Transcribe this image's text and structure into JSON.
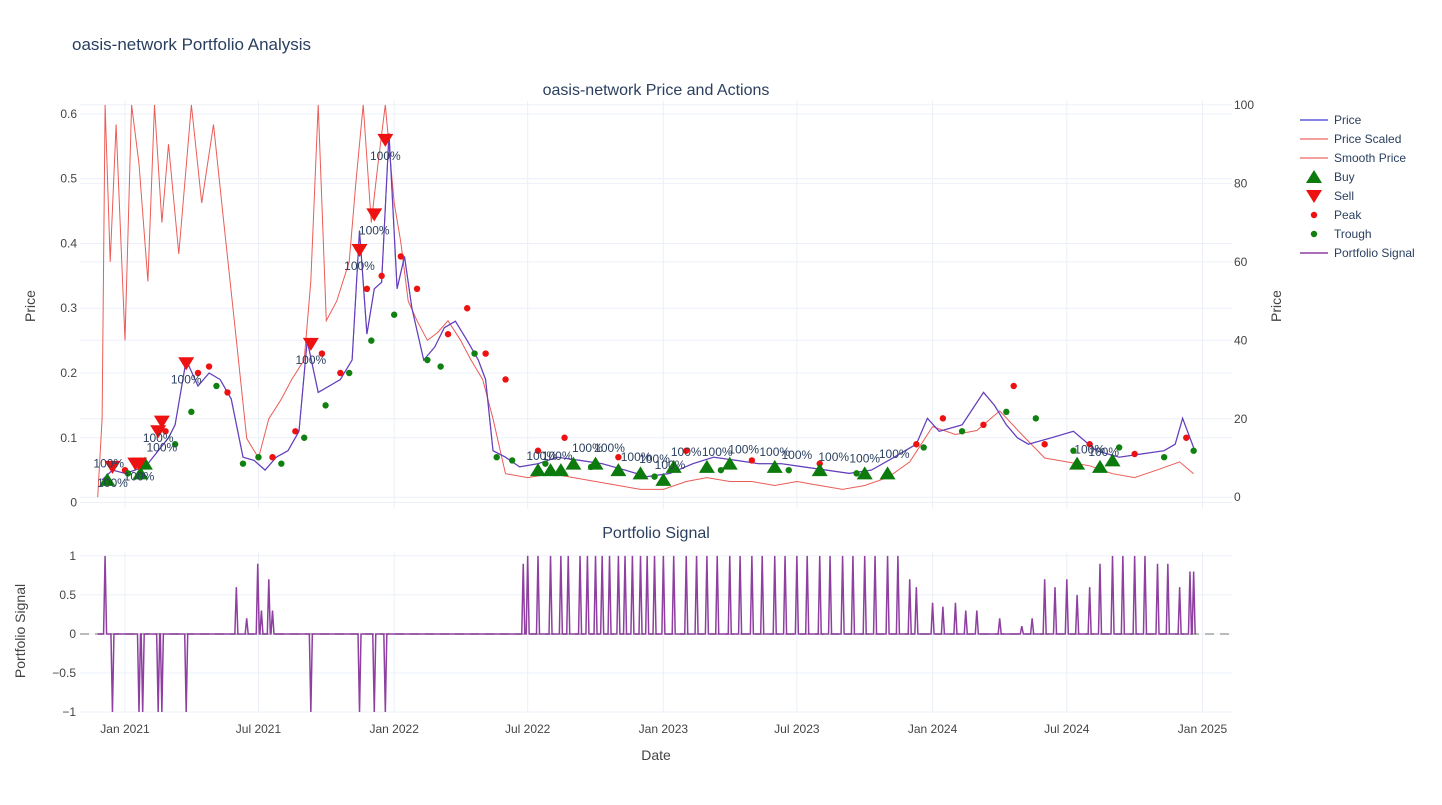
{
  "chart_data": [
    {
      "type": "line",
      "title": "oasis-network Portfolio Analysis",
      "subtitle": "oasis-network Price and Actions",
      "xlabel": "",
      "ylabel": "Price",
      "y2label": "Price",
      "xlim": [
        "2020-11-01",
        "2025-02-10"
      ],
      "ylim": [
        -0.01,
        0.62
      ],
      "y2lim": [
        -3,
        101
      ],
      "yticks": [
        0,
        0.1,
        0.2,
        0.3,
        0.4,
        0.5,
        0.6
      ],
      "ytick_labels": [
        "0",
        "0.1",
        "0.2",
        "0.3",
        "0.4",
        "0.5",
        "0.6"
      ],
      "y2ticks": [
        0,
        20,
        40,
        60,
        80,
        100
      ],
      "y2tick_labels": [
        "0",
        "20",
        "40",
        "60",
        "80",
        "100"
      ],
      "grid": true,
      "legend_position": "top-right",
      "legend": [
        "Price",
        "Price Scaled",
        "Smooth Price",
        "Buy",
        "Sell",
        "Peak",
        "Trough",
        "Portfolio Signal"
      ],
      "colors": {
        "price": "#3b3bd6",
        "price_scaled": "#e8403a",
        "smooth_price": "#e8403a",
        "buy": "#0d7a0d",
        "sell": "#ee1111",
        "peak": "#ee1111",
        "trough": "#108010",
        "signal": "#8e3fa0"
      },
      "series": [
        {
          "name": "Price",
          "x": [
            "2020-12-01",
            "2020-12-15",
            "2021-01-01",
            "2021-01-15",
            "2021-02-01",
            "2021-02-15",
            "2021-03-01",
            "2021-03-10",
            "2021-03-25",
            "2021-04-10",
            "2021-04-25",
            "2021-05-10",
            "2021-05-25",
            "2021-06-10",
            "2021-06-25",
            "2021-07-10",
            "2021-07-25",
            "2021-08-10",
            "2021-08-25",
            "2021-09-05",
            "2021-09-20",
            "2021-10-05",
            "2021-10-20",
            "2021-11-05",
            "2021-11-15",
            "2021-11-25",
            "2021-12-05",
            "2021-12-15",
            "2021-12-25",
            "2022-01-05",
            "2022-01-15",
            "2022-01-25",
            "2022-02-10",
            "2022-02-25",
            "2022-03-10",
            "2022-03-25",
            "2022-04-10",
            "2022-04-25",
            "2022-05-05",
            "2022-05-15",
            "2022-06-01",
            "2022-06-20",
            "2022-07-15",
            "2022-08-10",
            "2022-09-10",
            "2022-10-10",
            "2022-11-10",
            "2022-12-10",
            "2023-01-10",
            "2023-02-10",
            "2023-03-10",
            "2023-04-10",
            "2023-05-10",
            "2023-06-10",
            "2023-07-10",
            "2023-08-10",
            "2023-09-10",
            "2023-10-10",
            "2023-11-10",
            "2023-12-10",
            "2023-12-25",
            "2024-01-10",
            "2024-02-10",
            "2024-03-10",
            "2024-03-25",
            "2024-04-10",
            "2024-04-25",
            "2024-05-10",
            "2024-06-10",
            "2024-07-10",
            "2024-08-10",
            "2024-09-10",
            "2024-10-10",
            "2024-11-10",
            "2024-11-25",
            "2024-12-05",
            "2024-12-20"
          ],
          "values": [
            0.035,
            0.05,
            0.045,
            0.05,
            0.06,
            0.08,
            0.1,
            0.12,
            0.22,
            0.18,
            0.2,
            0.19,
            0.16,
            0.07,
            0.065,
            0.05,
            0.07,
            0.08,
            0.11,
            0.25,
            0.17,
            0.18,
            0.19,
            0.22,
            0.42,
            0.26,
            0.33,
            0.34,
            0.57,
            0.33,
            0.38,
            0.3,
            0.22,
            0.24,
            0.27,
            0.28,
            0.25,
            0.22,
            0.19,
            0.08,
            0.07,
            0.055,
            0.06,
            0.07,
            0.065,
            0.06,
            0.05,
            0.04,
            0.045,
            0.06,
            0.07,
            0.065,
            0.06,
            0.06,
            0.055,
            0.05,
            0.045,
            0.05,
            0.07,
            0.09,
            0.13,
            0.11,
            0.12,
            0.17,
            0.15,
            0.12,
            0.1,
            0.09,
            0.1,
            0.11,
            0.08,
            0.07,
            0.075,
            0.08,
            0.09,
            0.13,
            0.085
          ]
        },
        {
          "name": "Price Scaled",
          "x": [
            "2020-11-25",
            "2020-12-01",
            "2020-12-05",
            "2020-12-12",
            "2020-12-20",
            "2021-01-01",
            "2021-01-10",
            "2021-01-20",
            "2021-02-01",
            "2021-02-10",
            "2021-02-20",
            "2021-03-01",
            "2021-03-15",
            "2021-04-01",
            "2021-04-15",
            "2021-05-01",
            "2021-05-15",
            "2021-06-01",
            "2021-06-15",
            "2021-07-01",
            "2021-07-15",
            "2021-08-01",
            "2021-08-15",
            "2021-09-01",
            "2021-09-10",
            "2021-09-20",
            "2021-10-01",
            "2021-10-15",
            "2021-11-01",
            "2021-11-10",
            "2021-11-20",
            "2021-12-01",
            "2021-12-10",
            "2021-12-20",
            "2022-01-01",
            "2022-01-10",
            "2022-01-20",
            "2022-02-01",
            "2022-02-15",
            "2022-03-01",
            "2022-03-15",
            "2022-04-01",
            "2022-04-15",
            "2022-05-01",
            "2022-05-15",
            "2022-06-01",
            "2022-07-01",
            "2022-08-01",
            "2022-09-01",
            "2022-10-01",
            "2022-11-01",
            "2022-12-01",
            "2023-01-01",
            "2023-02-01",
            "2023-03-01",
            "2023-04-01",
            "2023-05-01",
            "2023-06-01",
            "2023-07-01",
            "2023-08-01",
            "2023-09-01",
            "2023-10-01",
            "2023-11-01",
            "2023-12-01",
            "2024-01-01",
            "2024-02-01",
            "2024-03-01",
            "2024-04-01",
            "2024-05-01",
            "2024-06-01",
            "2024-07-01",
            "2024-08-01",
            "2024-09-01",
            "2024-10-01",
            "2024-11-01",
            "2024-12-01",
            "2024-12-20"
          ],
          "values": [
            0,
            20,
            100,
            60,
            95,
            40,
            100,
            85,
            55,
            100,
            70,
            90,
            62,
            100,
            75,
            95,
            70,
            40,
            15,
            10,
            20,
            25,
            30,
            35,
            55,
            100,
            45,
            50,
            60,
            80,
            100,
            70,
            85,
            100,
            75,
            65,
            50,
            45,
            40,
            42,
            45,
            40,
            35,
            30,
            20,
            6,
            5,
            6,
            5,
            4,
            3,
            2,
            2,
            4,
            5,
            4,
            4,
            3,
            4,
            3,
            2,
            3,
            5,
            9,
            18,
            16,
            17,
            22,
            16,
            10,
            9,
            8,
            6,
            5,
            7,
            9,
            6
          ]
        }
      ],
      "markers": {
        "buy": {
          "x": [
            "2020-12-08",
            "2021-01-22",
            "2021-01-28",
            "2022-07-15",
            "2022-08-01",
            "2022-08-15",
            "2022-09-01",
            "2022-10-01",
            "2022-11-01",
            "2022-12-01",
            "2023-01-01",
            "2023-01-15",
            "2023-03-01",
            "2023-04-01",
            "2023-06-01",
            "2023-08-01",
            "2023-10-01",
            "2023-11-01",
            "2024-07-15",
            "2024-08-15",
            "2024-09-01"
          ],
          "values": [
            0.035,
            0.045,
            0.06,
            0.05,
            0.05,
            0.05,
            0.06,
            0.06,
            0.05,
            0.045,
            0.035,
            0.055,
            0.055,
            0.06,
            0.055,
            0.05,
            0.045,
            0.045,
            0.06,
            0.055,
            0.065
          ]
        },
        "sell": {
          "x": [
            "2020-12-15",
            "2021-01-15",
            "2021-01-20",
            "2021-02-15",
            "2021-02-20",
            "2021-03-25",
            "2021-09-10",
            "2021-11-15",
            "2021-12-05",
            "2021-12-20"
          ],
          "values": [
            0.055,
            0.06,
            0.06,
            0.11,
            0.125,
            0.215,
            0.245,
            0.39,
            0.445,
            0.56
          ]
        },
        "peak": {
          "x": [
            "2021-01-01",
            "2021-02-25",
            "2021-04-10",
            "2021-04-25",
            "2021-05-20",
            "2021-07-20",
            "2021-08-20",
            "2021-09-25",
            "2021-10-20",
            "2021-11-25",
            "2021-12-15",
            "2022-01-10",
            "2022-02-01",
            "2022-03-15",
            "2022-04-10",
            "2022-05-05",
            "2022-06-01",
            "2022-07-15",
            "2022-08-20",
            "2022-11-01",
            "2023-02-01",
            "2023-05-01",
            "2023-08-01",
            "2023-12-10",
            "2024-01-15",
            "2024-03-10",
            "2024-04-20",
            "2024-06-01",
            "2024-08-01",
            "2024-10-01",
            "2024-12-10"
          ],
          "values": [
            0.05,
            0.11,
            0.2,
            0.21,
            0.17,
            0.07,
            0.11,
            0.23,
            0.2,
            0.33,
            0.35,
            0.38,
            0.33,
            0.26,
            0.3,
            0.23,
            0.19,
            0.08,
            0.1,
            0.07,
            0.08,
            0.065,
            0.06,
            0.09,
            0.13,
            0.12,
            0.18,
            0.09,
            0.09,
            0.075,
            0.1
          ]
        },
        "trough": {
          "x": [
            "2021-01-05",
            "2021-03-10",
            "2021-04-01",
            "2021-05-05",
            "2021-06-10",
            "2021-07-01",
            "2021-08-01",
            "2021-09-01",
            "2021-09-30",
            "2021-11-01",
            "2021-12-01",
            "2022-01-01",
            "2022-02-15",
            "2022-03-05",
            "2022-04-20",
            "2022-05-20",
            "2022-06-10",
            "2022-07-25",
            "2022-09-25",
            "2022-12-20",
            "2023-03-20",
            "2023-06-20",
            "2023-09-20",
            "2023-12-20",
            "2024-02-10",
            "2024-04-10",
            "2024-05-20",
            "2024-07-10",
            "2024-09-10",
            "2024-11-10",
            "2024-12-20"
          ],
          "values": [
            0.045,
            0.09,
            0.14,
            0.18,
            0.06,
            0.07,
            0.06,
            0.1,
            0.15,
            0.2,
            0.25,
            0.29,
            0.22,
            0.21,
            0.23,
            0.07,
            0.065,
            0.06,
            0.055,
            0.04,
            0.05,
            0.05,
            0.045,
            0.085,
            0.11,
            0.14,
            0.13,
            0.08,
            0.085,
            0.07,
            0.08
          ]
        }
      },
      "annotations": [
        {
          "text": "100%",
          "x": "2020-12-10",
          "y": 0.06
        },
        {
          "text": "100%",
          "x": "2020-12-15",
          "y": 0.03
        },
        {
          "text": "100%",
          "x": "2021-01-20",
          "y": 0.04
        },
        {
          "text": "100%",
          "x": "2021-02-15",
          "y": 0.1
        },
        {
          "text": "100%",
          "x": "2021-02-20",
          "y": 0.085
        },
        {
          "text": "100%",
          "x": "2021-03-25",
          "y": 0.19
        },
        {
          "text": "100%",
          "x": "2021-09-10",
          "y": 0.22
        },
        {
          "text": "100%",
          "x": "2021-11-15",
          "y": 0.365
        },
        {
          "text": "100%",
          "x": "2021-12-05",
          "y": 0.42
        },
        {
          "text": "100%",
          "x": "2021-12-20",
          "y": 0.535
        },
        {
          "text": "100%",
          "x": "2022-07-20",
          "y": 0.072
        },
        {
          "text": "100%",
          "x": "2022-08-10",
          "y": 0.072
        },
        {
          "text": "100%",
          "x": "2022-09-20",
          "y": 0.084
        },
        {
          "text": "100%",
          "x": "2022-10-20",
          "y": 0.084
        },
        {
          "text": "100%",
          "x": "2022-11-25",
          "y": 0.07
        },
        {
          "text": "100%",
          "x": "2022-12-20",
          "y": 0.067
        },
        {
          "text": "100%",
          "x": "2023-01-10",
          "y": 0.058
        },
        {
          "text": "100%",
          "x": "2023-02-01",
          "y": 0.078
        },
        {
          "text": "100%",
          "x": "2023-03-15",
          "y": 0.078
        },
        {
          "text": "100%",
          "x": "2023-04-20",
          "y": 0.082
        },
        {
          "text": "100%",
          "x": "2023-06-01",
          "y": 0.078
        },
        {
          "text": "100%",
          "x": "2023-07-01",
          "y": 0.073
        },
        {
          "text": "100%",
          "x": "2023-08-20",
          "y": 0.07
        },
        {
          "text": "100%",
          "x": "2023-10-01",
          "y": 0.068
        },
        {
          "text": "100%",
          "x": "2023-11-10",
          "y": 0.075
        },
        {
          "text": "100%",
          "x": "2024-08-01",
          "y": 0.082
        },
        {
          "text": "100%",
          "x": "2024-08-20",
          "y": 0.078
        }
      ]
    },
    {
      "type": "line",
      "title": "Portfolio Signal",
      "xlabel": "Date",
      "ylabel": "Portfolio Signal",
      "xlim": [
        "2020-11-01",
        "2025-02-10"
      ],
      "ylim": [
        -1.0,
        1.05
      ],
      "yticks": [
        -1,
        -0.5,
        0,
        0.5,
        1
      ],
      "ytick_labels": [
        "−1",
        "−0.5",
        "0",
        "0.5",
        "1"
      ],
      "xticks": [
        "2021-01-01",
        "2021-07-01",
        "2022-01-01",
        "2022-07-01",
        "2023-01-01",
        "2023-07-01",
        "2024-01-01",
        "2024-07-01",
        "2025-01-01"
      ],
      "xtick_labels": [
        "Jan 2021",
        "Jul 2021",
        "Jan 2022",
        "Jul 2022",
        "Jan 2023",
        "Jul 2023",
        "Jan 2024",
        "Jul 2024",
        "Jan 2025"
      ],
      "zero_line": "dashed",
      "grid": true,
      "series": [
        {
          "name": "Portfolio Signal",
          "spikes_x": [
            "2020-12-05",
            "2020-12-15",
            "2021-01-20",
            "2021-01-25",
            "2021-02-15",
            "2021-02-20",
            "2021-03-25",
            "2021-06-01",
            "2021-06-15",
            "2021-06-30",
            "2021-07-05",
            "2021-07-15",
            "2021-07-20",
            "2021-09-10",
            "2021-11-15",
            "2021-12-05",
            "2021-12-20",
            "2022-06-25",
            "2022-07-01",
            "2022-07-15",
            "2022-08-01",
            "2022-08-15",
            "2022-08-25",
            "2022-09-10",
            "2022-09-20",
            "2022-10-01",
            "2022-10-10",
            "2022-10-20",
            "2022-11-01",
            "2022-11-10",
            "2022-11-20",
            "2022-12-01",
            "2022-12-10",
            "2022-12-20",
            "2023-01-01",
            "2023-01-15",
            "2023-02-01",
            "2023-02-15",
            "2023-03-01",
            "2023-03-15",
            "2023-04-01",
            "2023-04-15",
            "2023-05-01",
            "2023-05-15",
            "2023-06-01",
            "2023-06-15",
            "2023-07-01",
            "2023-07-15",
            "2023-08-01",
            "2023-08-15",
            "2023-09-01",
            "2023-09-15",
            "2023-10-01",
            "2023-10-15",
            "2023-11-01",
            "2023-11-15",
            "2023-12-01",
            "2023-12-10",
            "2024-01-01",
            "2024-01-15",
            "2024-02-01",
            "2024-02-15",
            "2024-03-01",
            "2024-04-01",
            "2024-05-01",
            "2024-05-15",
            "2024-06-01",
            "2024-06-15",
            "2024-07-01",
            "2024-07-15",
            "2024-08-01",
            "2024-08-15",
            "2024-09-01",
            "2024-09-15",
            "2024-10-01",
            "2024-10-15",
            "2024-11-01",
            "2024-11-15",
            "2024-12-01",
            "2024-12-15",
            "2024-12-20"
          ],
          "spikes_y": [
            1,
            -1,
            -1,
            -1,
            -1,
            -1,
            -1,
            0.6,
            0.2,
            0.9,
            0.3,
            0.7,
            0.3,
            -1,
            -1,
            -1,
            -1,
            0.9,
            1,
            1,
            1,
            1,
            1,
            1,
            1,
            1,
            1,
            1,
            1,
            1,
            1,
            1,
            1,
            1,
            1,
            1,
            1,
            1,
            1,
            1,
            1,
            1,
            1,
            1,
            1,
            1,
            1,
            1,
            1,
            1,
            1,
            1,
            1,
            1,
            1,
            1,
            0.7,
            0.6,
            0.4,
            0.35,
            0.4,
            0.3,
            0.3,
            0.2,
            0.1,
            0.2,
            0.7,
            0.6,
            0.7,
            0.5,
            0.6,
            0.9,
            1,
            1,
            1,
            1,
            0.9,
            0.9,
            0.6,
            0.8,
            0.8
          ]
        }
      ]
    }
  ]
}
